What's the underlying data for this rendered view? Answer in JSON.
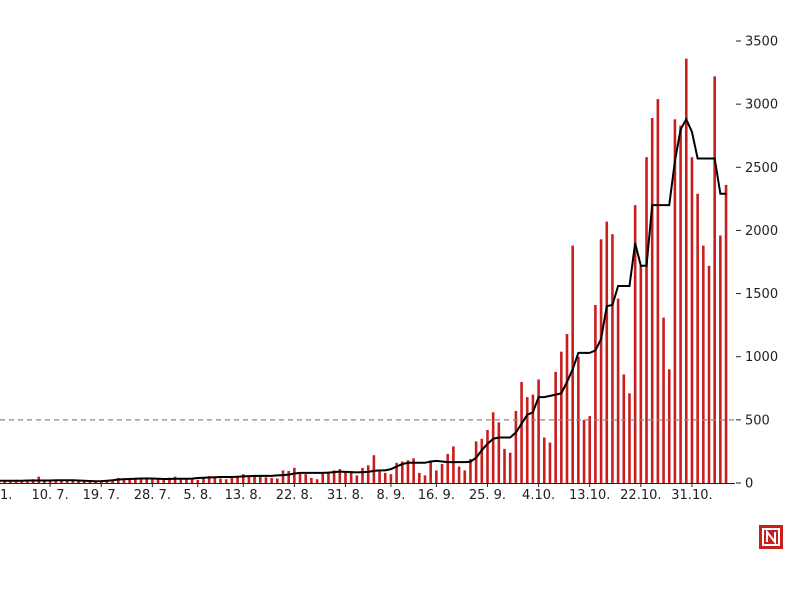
{
  "chart_data": {
    "type": "bar",
    "title": "",
    "xlabel": "",
    "ylabel": "",
    "ylim": [
      0,
      3500
    ],
    "yticks": [
      0,
      500,
      1000,
      1500,
      2000,
      2500,
      3000,
      3500
    ],
    "y_axis_side": "right",
    "grid": false,
    "reference_line": {
      "value": 500,
      "style": "dashed"
    },
    "x_tick_labels": [
      "1.",
      "10. 7.",
      "19. 7.",
      "28. 7.",
      "5. 8.",
      "13. 8.",
      "22. 8.",
      "31. 8.",
      "8. 9.",
      "16. 9.",
      "25. 9.",
      "4.10.",
      "13.10.",
      "22.10.",
      "31.10."
    ],
    "x_tick_day_index": [
      0,
      9,
      18,
      27,
      35,
      43,
      52,
      61,
      69,
      77,
      86,
      95,
      104,
      113,
      122
    ],
    "series": [
      {
        "type": "bar",
        "color": "#c81e1e",
        "values": [
          15,
          20,
          18,
          25,
          12,
          22,
          30,
          50,
          20,
          15,
          18,
          25,
          22,
          20,
          18,
          16,
          14,
          12,
          15,
          20,
          25,
          40,
          38,
          30,
          35,
          42,
          45,
          40,
          35,
          30,
          42,
          50,
          35,
          38,
          30,
          25,
          45,
          55,
          40,
          35,
          30,
          45,
          50,
          70,
          55,
          65,
          50,
          45,
          40,
          35,
          100,
          95,
          120,
          80,
          70,
          40,
          30,
          75,
          90,
          100,
          110,
          85,
          80,
          60,
          120,
          140,
          220,
          100,
          80,
          70,
          160,
          170,
          180,
          195,
          80,
          60,
          170,
          100,
          150,
          230,
          290,
          130,
          100,
          190,
          330,
          350,
          420,
          560,
          480,
          270,
          240,
          570,
          800,
          680,
          700,
          820,
          360,
          320,
          880,
          1040,
          1180,
          1880,
          1000,
          500,
          530,
          1410,
          1930,
          2070,
          1970,
          1460,
          860,
          710,
          2200,
          1720,
          2580,
          2890,
          3040,
          1310,
          900,
          2880,
          2830,
          3360,
          2580,
          2290,
          1880,
          1720,
          3220,
          1960,
          2360
        ]
      },
      {
        "type": "line",
        "color": "#000000",
        "values": [
          18,
          18,
          18,
          18,
          18,
          20,
          20,
          20,
          20,
          20,
          22,
          22,
          22,
          22,
          20,
          18,
          16,
          14,
          15,
          18,
          22,
          28,
          30,
          32,
          34,
          36,
          36,
          36,
          34,
          32,
          32,
          34,
          34,
          34,
          35,
          40,
          42,
          44,
          46,
          48,
          48,
          48,
          50,
          52,
          54,
          55,
          56,
          56,
          56,
          60,
          62,
          66,
          75,
          80,
          80,
          80,
          80,
          80,
          82,
          86,
          90,
          88,
          86,
          84,
          86,
          88,
          96,
          100,
          100,
          110,
          130,
          150,
          160,
          160,
          160,
          160,
          170,
          175,
          170,
          165,
          165,
          165,
          165,
          168,
          200,
          260,
          310,
          350,
          360,
          360,
          360,
          400,
          470,
          540,
          560,
          680,
          680,
          690,
          700,
          710,
          800,
          900,
          1030,
          1030,
          1030,
          1050,
          1140,
          1400,
          1410,
          1560,
          1560,
          1560,
          1900,
          1720,
          1720,
          2200,
          2200,
          2200,
          2200,
          2550,
          2800,
          2880,
          2780,
          2570,
          2570,
          2570,
          2570,
          2290,
          2290
        ]
      }
    ]
  }
}
